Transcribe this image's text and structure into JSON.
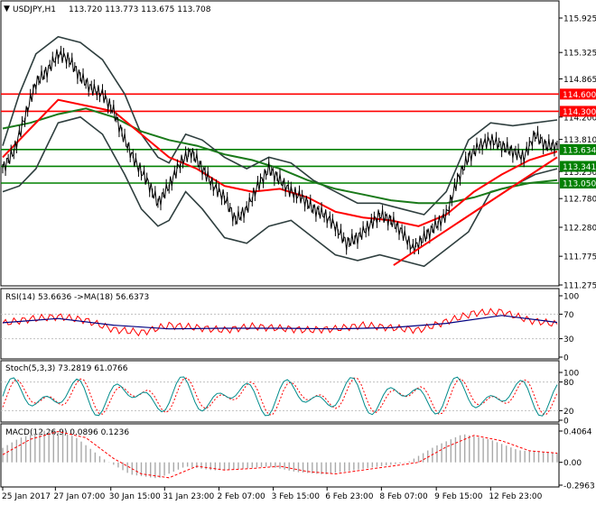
{
  "chart_data": {
    "type": "line",
    "header": {
      "symbol_label": "USDJPY,H1",
      "ohlc_label": "113.720 113.773 113.675 113.708"
    },
    "price_axis": {
      "min": 111.275,
      "max": 115.925,
      "tick_labels": [
        "115.925",
        "115.325",
        "114.865",
        "114.200",
        "113.810",
        "113.250",
        "112.780",
        "112.280",
        "111.775",
        "111.275"
      ],
      "tick_values": [
        115.925,
        115.325,
        114.865,
        114.2,
        113.81,
        113.25,
        112.78,
        112.28,
        111.775,
        111.275
      ]
    },
    "horizontal_levels": [
      {
        "value": 114.6,
        "label": "114.600",
        "color": "#ff0000"
      },
      {
        "value": 114.3,
        "label": "114.300",
        "color": "#ff0000"
      },
      {
        "value": 113.634,
        "label": "113.634",
        "color": "#008000"
      },
      {
        "value": 113.341,
        "label": "113.341",
        "color": "#008000"
      },
      {
        "value": 113.05,
        "label": "113.050",
        "color": "#008000"
      }
    ],
    "trendline": {
      "from": {
        "x": 0.705,
        "y": 111.62
      },
      "to": {
        "x": 1.0,
        "y": 113.5
      },
      "color": "#ff0000"
    },
    "time_labels": [
      "25 Jan 2017",
      "27 Jan 07:00",
      "30 Jan 15:00",
      "31 Jan 23:00",
      "2 Feb 07:00",
      "3 Feb 15:00",
      "6 Feb 23:00",
      "8 Feb 07:00",
      "9 Feb 15:00",
      "12 Feb 23:00"
    ],
    "time_positions": [
      0.0,
      0.095,
      0.195,
      0.292,
      0.39,
      0.488,
      0.585,
      0.683,
      0.782,
      0.88
    ],
    "price_path": [
      [
        0,
        113.3
      ],
      [
        0.02,
        113.6
      ],
      [
        0.04,
        114.2
      ],
      [
        0.06,
        114.8
      ],
      [
        0.08,
        115.0
      ],
      [
        0.1,
        115.3
      ],
      [
        0.12,
        115.2
      ],
      [
        0.14,
        114.9
      ],
      [
        0.16,
        114.7
      ],
      [
        0.18,
        114.6
      ],
      [
        0.2,
        114.3
      ],
      [
        0.22,
        113.8
      ],
      [
        0.24,
        113.4
      ],
      [
        0.26,
        113.1
      ],
      [
        0.28,
        112.7
      ],
      [
        0.3,
        113.0
      ],
      [
        0.32,
        113.4
      ],
      [
        0.34,
        113.6
      ],
      [
        0.36,
        113.3
      ],
      [
        0.38,
        113.0
      ],
      [
        0.4,
        112.8
      ],
      [
        0.42,
        112.4
      ],
      [
        0.44,
        112.6
      ],
      [
        0.46,
        113.0
      ],
      [
        0.48,
        113.3
      ],
      [
        0.5,
        113.1
      ],
      [
        0.52,
        112.9
      ],
      [
        0.54,
        112.8
      ],
      [
        0.56,
        112.6
      ],
      [
        0.58,
        112.5
      ],
      [
        0.6,
        112.3
      ],
      [
        0.62,
        112.0
      ],
      [
        0.64,
        112.1
      ],
      [
        0.66,
        112.3
      ],
      [
        0.68,
        112.5
      ],
      [
        0.7,
        112.4
      ],
      [
        0.72,
        112.2
      ],
      [
        0.74,
        111.9
      ],
      [
        0.76,
        112.1
      ],
      [
        0.78,
        112.3
      ],
      [
        0.8,
        112.5
      ],
      [
        0.82,
        113.1
      ],
      [
        0.84,
        113.5
      ],
      [
        0.86,
        113.7
      ],
      [
        0.88,
        113.8
      ],
      [
        0.9,
        113.7
      ],
      [
        0.92,
        113.6
      ],
      [
        0.94,
        113.5
      ],
      [
        0.96,
        113.9
      ],
      [
        0.98,
        113.7
      ],
      [
        1.0,
        113.708
      ]
    ],
    "ma_fast": [
      [
        0,
        113.5
      ],
      [
        0.05,
        114.0
      ],
      [
        0.1,
        114.5
      ],
      [
        0.15,
        114.4
      ],
      [
        0.2,
        114.3
      ],
      [
        0.25,
        113.9
      ],
      [
        0.3,
        113.5
      ],
      [
        0.35,
        113.3
      ],
      [
        0.4,
        113.0
      ],
      [
        0.45,
        112.9
      ],
      [
        0.5,
        112.95
      ],
      [
        0.55,
        112.8
      ],
      [
        0.6,
        112.55
      ],
      [
        0.65,
        112.45
      ],
      [
        0.7,
        112.4
      ],
      [
        0.75,
        112.3
      ],
      [
        0.8,
        112.5
      ],
      [
        0.85,
        112.9
      ],
      [
        0.9,
        113.2
      ],
      [
        0.95,
        113.45
      ],
      [
        1.0,
        113.6
      ]
    ],
    "ma_slow": [
      [
        0,
        114.0
      ],
      [
        0.05,
        114.1
      ],
      [
        0.1,
        114.25
      ],
      [
        0.15,
        114.35
      ],
      [
        0.2,
        114.2
      ],
      [
        0.25,
        113.95
      ],
      [
        0.3,
        113.8
      ],
      [
        0.35,
        113.7
      ],
      [
        0.4,
        113.55
      ],
      [
        0.45,
        113.45
      ],
      [
        0.5,
        113.3
      ],
      [
        0.55,
        113.1
      ],
      [
        0.6,
        112.95
      ],
      [
        0.65,
        112.85
      ],
      [
        0.7,
        112.75
      ],
      [
        0.75,
        112.7
      ],
      [
        0.8,
        112.7
      ],
      [
        0.85,
        112.8
      ],
      [
        0.9,
        112.95
      ],
      [
        0.95,
        113.05
      ],
      [
        1.0,
        113.1
      ]
    ],
    "bb_upper": [
      [
        0,
        113.7
      ],
      [
        0.03,
        114.6
      ],
      [
        0.06,
        115.3
      ],
      [
        0.1,
        115.6
      ],
      [
        0.14,
        115.5
      ],
      [
        0.18,
        115.2
      ],
      [
        0.22,
        114.6
      ],
      [
        0.25,
        113.9
      ],
      [
        0.28,
        113.5
      ],
      [
        0.3,
        113.4
      ],
      [
        0.33,
        113.9
      ],
      [
        0.36,
        113.8
      ],
      [
        0.4,
        113.5
      ],
      [
        0.44,
        113.3
      ],
      [
        0.48,
        113.5
      ],
      [
        0.52,
        113.4
      ],
      [
        0.56,
        113.1
      ],
      [
        0.6,
        112.9
      ],
      [
        0.64,
        112.7
      ],
      [
        0.68,
        112.7
      ],
      [
        0.72,
        112.6
      ],
      [
        0.76,
        112.5
      ],
      [
        0.8,
        112.9
      ],
      [
        0.84,
        113.8
      ],
      [
        0.88,
        114.1
      ],
      [
        0.92,
        114.05
      ],
      [
        0.96,
        114.1
      ],
      [
        1.0,
        114.15
      ]
    ],
    "bb_lower": [
      [
        0,
        112.9
      ],
      [
        0.03,
        113.0
      ],
      [
        0.06,
        113.3
      ],
      [
        0.1,
        114.1
      ],
      [
        0.14,
        114.2
      ],
      [
        0.18,
        113.9
      ],
      [
        0.22,
        113.2
      ],
      [
        0.25,
        112.6
      ],
      [
        0.28,
        112.3
      ],
      [
        0.3,
        112.4
      ],
      [
        0.33,
        112.9
      ],
      [
        0.36,
        112.6
      ],
      [
        0.4,
        112.1
      ],
      [
        0.44,
        112.0
      ],
      [
        0.48,
        112.3
      ],
      [
        0.52,
        112.4
      ],
      [
        0.56,
        112.1
      ],
      [
        0.6,
        111.8
      ],
      [
        0.64,
        111.7
      ],
      [
        0.68,
        111.8
      ],
      [
        0.72,
        111.7
      ],
      [
        0.76,
        111.6
      ],
      [
        0.8,
        111.9
      ],
      [
        0.84,
        112.2
      ],
      [
        0.88,
        112.9
      ],
      [
        0.92,
        113.0
      ],
      [
        0.96,
        113.2
      ],
      [
        1.0,
        113.3
      ]
    ],
    "rsi": {
      "label": "RSI(14) 53.6636",
      "ma_label": "->MA(18) 56.6373",
      "scale": [
        "100",
        "70",
        "30",
        "0"
      ],
      "scale_values": [
        100,
        70,
        30,
        0
      ],
      "line": [
        [
          0,
          55
        ],
        [
          0.05,
          62
        ],
        [
          0.1,
          66
        ],
        [
          0.15,
          60
        ],
        [
          0.2,
          45
        ],
        [
          0.25,
          40
        ],
        [
          0.3,
          52
        ],
        [
          0.35,
          48
        ],
        [
          0.4,
          44
        ],
        [
          0.45,
          50
        ],
        [
          0.5,
          47
        ],
        [
          0.55,
          44
        ],
        [
          0.6,
          46
        ],
        [
          0.65,
          52
        ],
        [
          0.7,
          48
        ],
        [
          0.75,
          44
        ],
        [
          0.8,
          58
        ],
        [
          0.85,
          72
        ],
        [
          0.9,
          74
        ],
        [
          0.95,
          60
        ],
        [
          1.0,
          53.66
        ]
      ],
      "ma": [
        [
          0,
          56
        ],
        [
          0.1,
          63
        ],
        [
          0.2,
          52
        ],
        [
          0.3,
          46
        ],
        [
          0.4,
          47
        ],
        [
          0.5,
          47
        ],
        [
          0.6,
          46
        ],
        [
          0.7,
          48
        ],
        [
          0.8,
          55
        ],
        [
          0.9,
          68
        ],
        [
          1.0,
          56.64
        ]
      ]
    },
    "stoch": {
      "label": "Stoch(5,3,3) 73.2819 61.0766",
      "scale": [
        "100",
        "80",
        "20",
        "0"
      ],
      "scale_values": [
        100,
        80,
        20,
        0
      ]
    },
    "macd": {
      "label": "MACD(12,26,9) 0.0896 0.1236",
      "scale": [
        "0.4064",
        "0.00",
        "-0.2963"
      ],
      "scale_values": [
        0.4064,
        0,
        -0.2963
      ],
      "signal": [
        [
          0,
          0.1
        ],
        [
          0.05,
          0.3
        ],
        [
          0.1,
          0.4
        ],
        [
          0.15,
          0.32
        ],
        [
          0.2,
          0.05
        ],
        [
          0.25,
          -0.15
        ],
        [
          0.3,
          -0.2
        ],
        [
          0.35,
          -0.05
        ],
        [
          0.4,
          -0.1
        ],
        [
          0.45,
          -0.08
        ],
        [
          0.5,
          -0.05
        ],
        [
          0.55,
          -0.12
        ],
        [
          0.6,
          -0.15
        ],
        [
          0.65,
          -0.1
        ],
        [
          0.7,
          -0.05
        ],
        [
          0.75,
          0.0
        ],
        [
          0.8,
          0.2
        ],
        [
          0.85,
          0.35
        ],
        [
          0.9,
          0.28
        ],
        [
          0.95,
          0.15
        ],
        [
          1.0,
          0.12
        ]
      ]
    },
    "colors": {
      "price": "#000000",
      "bands": "#2f3f3f",
      "ma_fast": "#ff0000",
      "ma_slow": "#1a7a1a",
      "rsi_line": "#ff0000",
      "rsi_ma": "#000080",
      "stoch_main": "#008b8b",
      "stoch_signal": "#ff0000",
      "macd_hist": "#a9a9a9",
      "macd_signal": "#ff0000"
    }
  }
}
